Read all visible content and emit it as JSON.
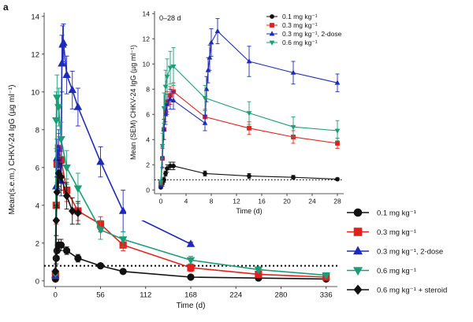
{
  "panel_label": "a",
  "chart_data": [
    {
      "type": "line",
      "ylabel": "Mean(s.e.m.) CHKV-24 IgG (µg ml⁻¹)",
      "xlabel": "Time (d)",
      "xticks": [
        0,
        56,
        112,
        168,
        224,
        280,
        336
      ],
      "yticks": [
        0,
        2,
        4,
        6,
        8,
        10,
        12,
        14
      ],
      "xlim": [
        -14,
        350
      ],
      "ylim": [
        -0.3,
        14.2
      ],
      "reference_line": 0.8,
      "series": [
        {
          "name": "0.1 mg kg⁻¹",
          "color": "#111111",
          "marker": "circle",
          "x": [
            0,
            1,
            2,
            4,
            7,
            14,
            28,
            56,
            84,
            168,
            252,
            336
          ],
          "y": [
            0.1,
            1.2,
            1.6,
            1.9,
            1.9,
            1.6,
            1.2,
            0.8,
            0.5,
            0.2,
            0.15,
            0.1
          ],
          "err": [
            0.1,
            0.3,
            0.3,
            0.3,
            0.3,
            0.2,
            0.2,
            0.1,
            0.1,
            0.05,
            0.05,
            0.05
          ]
        },
        {
          "name": "0.3 mg kg⁻¹",
          "color": "#e3211c",
          "marker": "square",
          "x": [
            0,
            1,
            2,
            4,
            7,
            14,
            28,
            56,
            84,
            168,
            252,
            336
          ],
          "y": [
            0.3,
            4.0,
            6.2,
            7.0,
            6.4,
            4.8,
            3.7,
            3.0,
            1.9,
            0.7,
            0.35,
            0.2
          ],
          "err": [
            0.1,
            1.0,
            1.0,
            0.8,
            0.7,
            0.6,
            0.5,
            0.4,
            0.3,
            0.2,
            0.1,
            0.1
          ]
        },
        {
          "name": "0.3 mg kg⁻¹, 2-dose",
          "color": "#1f2bb8",
          "marker": "triangle-up",
          "x": [
            0,
            1,
            2,
            4,
            7,
            8,
            9,
            10,
            14,
            21,
            28,
            56,
            84,
            168
          ],
          "y": [
            0.3,
            5.0,
            6.5,
            7.0,
            5.3,
            11.5,
            12.5,
            12.6,
            10.9,
            10.1,
            9.2,
            6.3,
            3.7,
            1.95
          ],
          "err": [
            0.1,
            1.0,
            1.0,
            1.0,
            0.8,
            1.5,
            1.0,
            1.0,
            1.0,
            1.0,
            1.0,
            0.8,
            1.1,
            0.1
          ]
        },
        {
          "name": "0.6 mg kg⁻¹",
          "color": "#1b9e77",
          "marker": "triangle-down",
          "x": [
            0,
            1,
            2,
            4,
            7,
            14,
            28,
            56,
            84,
            168,
            252,
            336
          ],
          "y": [
            0.4,
            8.5,
            9.7,
            9.2,
            7.5,
            6.0,
            4.9,
            2.7,
            2.2,
            1.1,
            0.6,
            0.3
          ],
          "err": [
            0.1,
            1.5,
            1.2,
            1.0,
            0.9,
            0.9,
            0.8,
            0.5,
            0.4,
            0.2,
            0.15,
            0.1
          ]
        },
        {
          "name": "0.6 mg kg⁻¹ + steroid",
          "color": "#111111",
          "marker": "diamond",
          "x": [
            0,
            1,
            2,
            4,
            7,
            14,
            21,
            28
          ],
          "y": [
            0.5,
            3.2,
            4.7,
            5.7,
            5.5,
            4.5,
            3.7,
            3.6
          ],
          "err": [
            0.1,
            0.8,
            0.8,
            0.7,
            0.7,
            0.7,
            0.7,
            0.6
          ]
        }
      ]
    },
    {
      "type": "line",
      "title": "0–28 d",
      "ylabel": "Mean (SEM) CHKV-24 IgG (µg ml⁻¹)",
      "xlabel": "Time (d)",
      "xticks": [
        0,
        4,
        8,
        12,
        16,
        20,
        24,
        28
      ],
      "yticks": [
        0,
        2,
        4,
        6,
        8,
        10,
        12,
        14
      ],
      "xlim": [
        -1,
        29
      ],
      "ylim": [
        -0.3,
        14.2
      ],
      "reference_line": 0.8,
      "series": [
        {
          "name": "0.1 mg kg⁻¹",
          "color": "#111111",
          "marker": "circle",
          "x": [
            0,
            0.25,
            0.5,
            0.75,
            1,
            1.5,
            2,
            7,
            14,
            21,
            28
          ],
          "y": [
            0.2,
            0.5,
            0.8,
            1.3,
            1.7,
            1.9,
            1.9,
            1.3,
            1.1,
            1.0,
            0.85
          ],
          "err": [
            0.1,
            0.2,
            0.2,
            0.2,
            0.3,
            0.3,
            0.3,
            0.2,
            0.2,
            0.15,
            0.1
          ]
        },
        {
          "name": "0.3 mg kg⁻¹",
          "color": "#e3211c",
          "marker": "square",
          "x": [
            0,
            0.25,
            0.5,
            0.75,
            1,
            1.5,
            2,
            7,
            14,
            21,
            28
          ],
          "y": [
            0.5,
            2.5,
            4.8,
            6.2,
            7.0,
            7.5,
            7.8,
            5.8,
            4.9,
            4.2,
            3.7
          ],
          "err": [
            0.2,
            0.8,
            0.8,
            0.8,
            0.8,
            0.7,
            0.7,
            0.6,
            0.5,
            0.5,
            0.4
          ]
        },
        {
          "name": "0.3 mg kg⁻¹, 2-dose",
          "color": "#1f2bb8",
          "marker": "triangle-up",
          "x": [
            0,
            0.25,
            0.5,
            0.75,
            1,
            1.5,
            2,
            7,
            7.25,
            7.5,
            7.75,
            8,
            9,
            14,
            21,
            28
          ],
          "y": [
            0.4,
            2.6,
            4.8,
            6.0,
            6.8,
            7.2,
            7.1,
            5.3,
            8.0,
            9.5,
            10.5,
            11.7,
            12.6,
            10.2,
            9.3,
            8.5
          ],
          "err": [
            0.2,
            0.8,
            0.8,
            0.8,
            0.8,
            0.8,
            0.7,
            0.6,
            1.0,
            1.0,
            1.0,
            1.1,
            1.0,
            1.2,
            0.9,
            0.7
          ]
        },
        {
          "name": "0.6 mg kg⁻¹",
          "color": "#1b9e77",
          "marker": "triangle-down",
          "x": [
            0,
            0.25,
            0.5,
            0.75,
            1,
            1.5,
            2,
            7,
            14,
            21,
            28
          ],
          "y": [
            0.6,
            3.5,
            6.5,
            8.2,
            9.0,
            9.7,
            9.8,
            7.3,
            6.1,
            5.0,
            4.7
          ],
          "err": [
            0.2,
            1.0,
            1.2,
            1.3,
            1.4,
            1.3,
            1.5,
            1.0,
            0.9,
            0.8,
            0.8
          ]
        }
      ]
    }
  ],
  "legend_main": [
    "0.1 mg kg⁻¹",
    "0.3 mg kg⁻¹",
    "0.3 mg kg⁻¹, 2-dose",
    "0.6 mg kg⁻¹",
    "0.6 mg kg⁻¹ + steroid"
  ]
}
